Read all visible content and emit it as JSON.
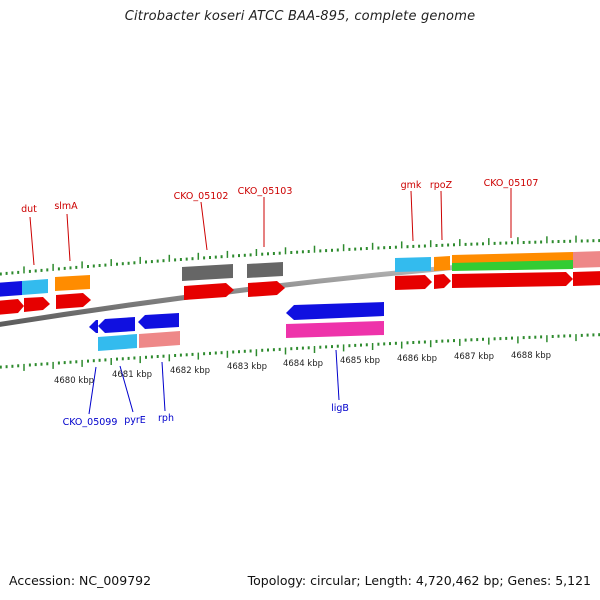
{
  "header": {
    "title": "Citrobacter koseri ATCC BAA-895, complete genome"
  },
  "footer": {
    "accession": "Accession: NC_009792",
    "summary": "Topology: circular; Length: 4,720,462 bp; Genes: 5,121"
  },
  "colors": {
    "backbone": "#8c8c8c",
    "tick": "#2e8b2e",
    "label_top": "#cc0000",
    "label_bottom": "#0000cc",
    "cds_forward": "#e60000",
    "cds_reverse": "#1010e0",
    "cyan": "#33bbee",
    "orange": "#ff8c00",
    "pink": "#ee8888",
    "gray": "#666666",
    "green": "#33cc33",
    "magenta": "#ee33aa"
  },
  "scale_labels": [
    "4680 kbp",
    "4681 kbp",
    "4682 kbp",
    "4683 kbp",
    "4684 kbp",
    "4685 kbp",
    "4686 kbp",
    "4687 kbp",
    "4688 kbp"
  ],
  "top_labels": [
    "dut",
    "slmA",
    "CKO_05102",
    "CKO_05103",
    "gmk",
    "rpoZ",
    "CKO_05107"
  ],
  "bottom_labels": [
    "CKO_05099",
    "pyrE",
    "rph",
    "ligB"
  ]
}
